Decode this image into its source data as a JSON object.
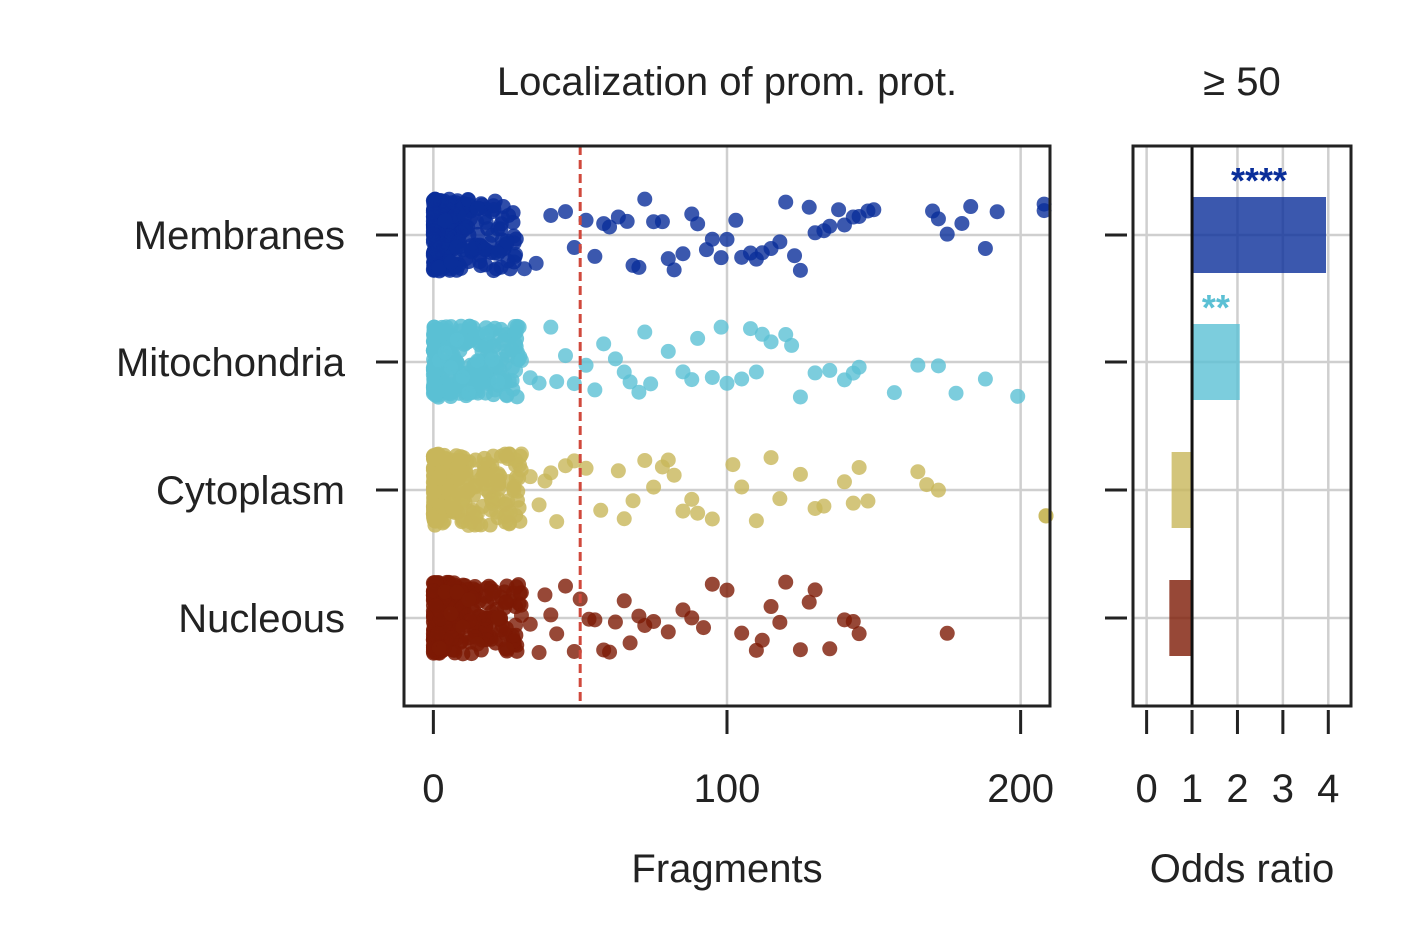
{
  "chart_data": [
    {
      "type": "scatter",
      "title": "Localization of prom. prot.",
      "xlabel": "Fragments",
      "ylabel": "",
      "xlim": [
        -10,
        210
      ],
      "xticks": [
        "0",
        "100",
        "200"
      ],
      "threshold_line": 50,
      "categories": [
        "Membranes",
        "Mitochondria",
        "Cytoplasm",
        "Nucleous"
      ],
      "colors": {
        "Membranes": "#0a2e9a",
        "Mitochondria": "#5bc0d4",
        "Cytoplasm": "#c8b65a",
        "Nucleous": "#7d1a05"
      },
      "series": [
        {
          "name": "Membranes",
          "values": [
            2,
            4,
            6,
            8,
            10,
            12,
            15,
            18,
            20,
            22,
            25,
            28,
            31,
            35,
            40,
            45,
            48,
            52,
            55,
            58,
            60,
            63,
            66,
            68,
            70,
            72,
            75,
            78,
            80,
            82,
            85,
            88,
            90,
            93,
            95,
            98,
            100,
            103,
            105,
            108,
            110,
            112,
            115,
            118,
            120,
            123,
            125,
            128,
            130,
            133,
            135,
            138,
            140,
            143,
            145,
            148,
            150,
            170,
            172,
            175,
            180,
            183,
            188,
            192,
            208,
            208
          ]
        },
        {
          "name": "Mitochondria",
          "values": [
            2,
            4,
            6,
            8,
            10,
            12,
            15,
            18,
            20,
            22,
            25,
            28,
            30,
            33,
            36,
            40,
            42,
            45,
            48,
            52,
            55,
            58,
            62,
            65,
            67,
            70,
            72,
            74,
            80,
            85,
            88,
            90,
            95,
            98,
            100,
            105,
            108,
            110,
            112,
            115,
            120,
            122,
            125,
            130,
            135,
            140,
            143,
            145,
            157,
            165,
            172,
            178,
            188,
            199
          ]
        },
        {
          "name": "Cytoplasm",
          "values": [
            2,
            4,
            6,
            8,
            10,
            12,
            15,
            18,
            20,
            22,
            25,
            28,
            30,
            33,
            36,
            38,
            40,
            42,
            45,
            48,
            52,
            57,
            63,
            65,
            68,
            72,
            75,
            78,
            80,
            82,
            85,
            88,
            90,
            95,
            102,
            105,
            110,
            115,
            118,
            125,
            130,
            133,
            140,
            143,
            145,
            148,
            165,
            168,
            172,
            210,
            210
          ]
        },
        {
          "name": "Nucleous",
          "values": [
            2,
            4,
            6,
            8,
            10,
            12,
            15,
            18,
            20,
            22,
            25,
            28,
            30,
            33,
            36,
            38,
            40,
            42,
            45,
            48,
            50,
            53,
            55,
            58,
            60,
            62,
            65,
            67,
            70,
            72,
            75,
            80,
            85,
            88,
            92,
            95,
            100,
            105,
            110,
            112,
            115,
            118,
            120,
            125,
            128,
            130,
            135,
            140,
            143,
            145,
            175
          ]
        }
      ]
    },
    {
      "type": "bar",
      "title": "≥ 50",
      "xlabel": "Odds ratio",
      "ylabel": "",
      "xlim": [
        -0.3,
        4.5
      ],
      "xticks": [
        "0",
        "1",
        "2",
        "3",
        "4"
      ],
      "baseline": 1,
      "categories": [
        "Membranes",
        "Mitochondria",
        "Cytoplasm",
        "Nucleous"
      ],
      "values": [
        3.95,
        2.05,
        0.55,
        0.5
      ],
      "significance": [
        "****",
        "**",
        "",
        ""
      ],
      "colors": [
        "#0a2e9a",
        "#5bc0d4",
        "#c8b65a",
        "#7d1a05"
      ]
    }
  ]
}
